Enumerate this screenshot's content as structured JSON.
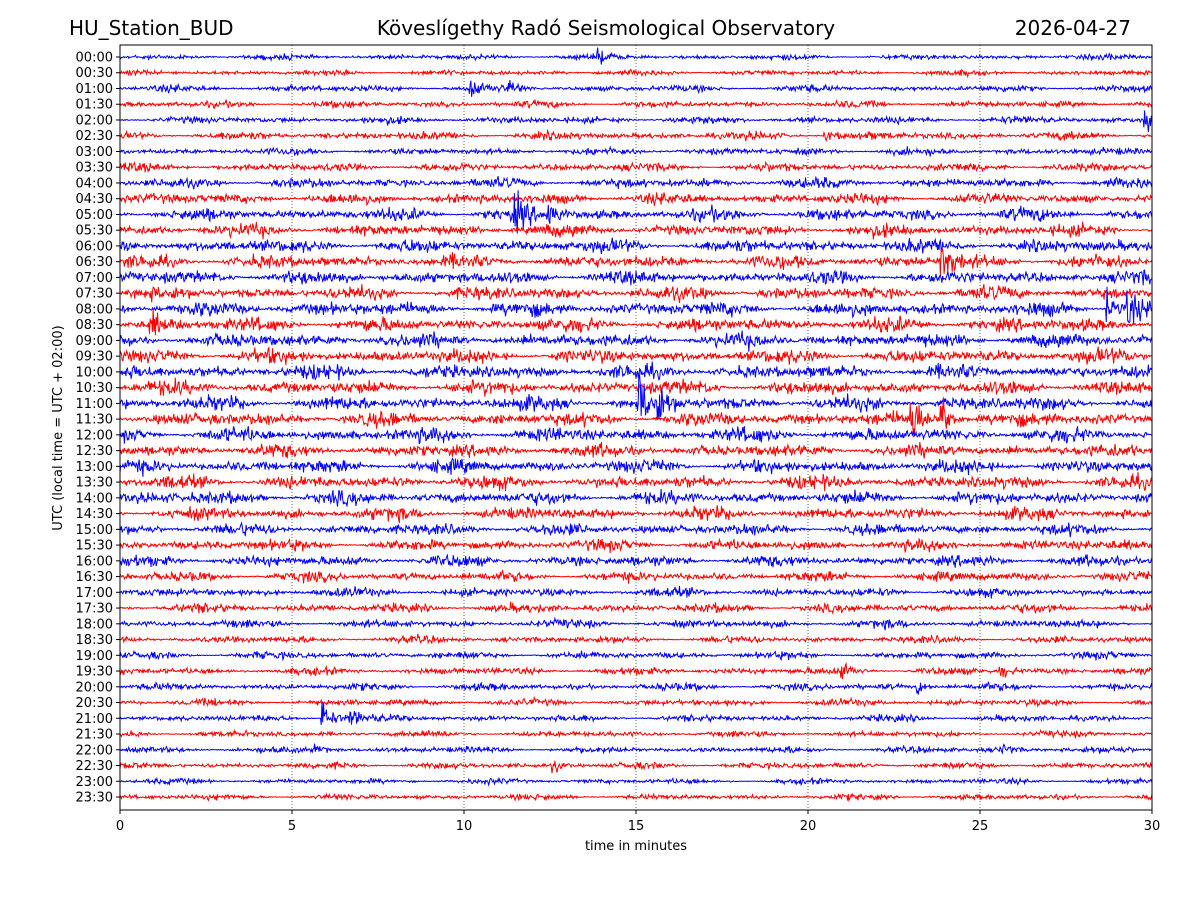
{
  "chart_data": {
    "type": "line",
    "title_left": "HU_Station_BUD",
    "title_center": "Köveslígethy Radó Seismological Observatory",
    "title_right": "2026-04-27",
    "xlabel": "time in minutes",
    "ylabel": "UTC (local time = UTC + 02:00)",
    "xlim": [
      0,
      30
    ],
    "xticks": [
      0,
      5,
      10,
      15,
      20,
      25,
      30
    ],
    "grid": "vertical dotted at x ticks",
    "colors": [
      "#0000ff",
      "#ff0000"
    ],
    "rows": [
      "00:00",
      "00:30",
      "01:00",
      "01:30",
      "02:00",
      "02:30",
      "03:00",
      "03:30",
      "04:00",
      "04:30",
      "05:00",
      "05:30",
      "06:00",
      "06:30",
      "07:00",
      "07:30",
      "08:00",
      "08:30",
      "09:00",
      "09:30",
      "10:00",
      "10:30",
      "11:00",
      "11:30",
      "12:00",
      "12:30",
      "13:00",
      "13:30",
      "14:00",
      "14:30",
      "15:00",
      "15:30",
      "16:00",
      "16:30",
      "17:00",
      "17:30",
      "18:00",
      "18:30",
      "19:00",
      "19:30",
      "20:00",
      "20:30",
      "21:00",
      "21:30",
      "22:00",
      "22:30",
      "23:00",
      "23:30"
    ],
    "noise_level": [
      1.2,
      1.2,
      1.5,
      1.5,
      1.6,
      1.8,
      1.6,
      1.9,
      2.2,
      2.5,
      2.8,
      2.8,
      3.0,
      3.0,
      3.0,
      3.0,
      3.2,
      3.2,
      3.2,
      3.2,
      3.2,
      3.2,
      3.2,
      3.2,
      3.2,
      3.0,
      3.0,
      3.0,
      3.0,
      2.8,
      2.6,
      2.5,
      2.5,
      2.2,
      2.0,
      2.0,
      1.8,
      1.6,
      1.6,
      1.6,
      1.6,
      1.5,
      1.5,
      1.4,
      1.4,
      1.4,
      1.2,
      1.3
    ],
    "events": [
      {
        "row": "00:00",
        "minute": 13.9,
        "amplitude": 3
      },
      {
        "row": "01:00",
        "minute": 10.2,
        "amplitude": 4
      },
      {
        "row": "01:00",
        "minute": 11.3,
        "amplitude": 3
      },
      {
        "row": "02:00",
        "minute": 29.8,
        "amplitude": 6
      },
      {
        "row": "02:30",
        "minute": 20.5,
        "amplitude": 3
      },
      {
        "row": "05:00",
        "minute": 11.5,
        "amplitude": 8
      },
      {
        "row": "05:00",
        "minute": 12.4,
        "amplitude": 6
      },
      {
        "row": "06:30",
        "minute": 23.9,
        "amplitude": 12
      },
      {
        "row": "08:00",
        "minute": 28.7,
        "amplitude": 10
      },
      {
        "row": "08:00",
        "minute": 29.3,
        "amplitude": 8
      },
      {
        "row": "08:30",
        "minute": 0.9,
        "amplitude": 7
      },
      {
        "row": "11:00",
        "minute": 15.1,
        "amplitude": 14
      },
      {
        "row": "11:00",
        "minute": 15.6,
        "amplitude": 9
      },
      {
        "row": "11:30",
        "minute": 23.0,
        "amplitude": 12
      },
      {
        "row": "11:30",
        "minute": 23.9,
        "amplitude": 12
      },
      {
        "row": "19:30",
        "minute": 21.0,
        "amplitude": 4
      },
      {
        "row": "19:30",
        "minute": 25.6,
        "amplitude": 4
      },
      {
        "row": "20:00",
        "minute": 23.2,
        "amplitude": 3
      },
      {
        "row": "21:00",
        "minute": 5.9,
        "amplitude": 9
      },
      {
        "row": "21:00",
        "minute": 6.7,
        "amplitude": 5
      },
      {
        "row": "22:00",
        "minute": 5.7,
        "amplitude": 3
      },
      {
        "row": "22:00",
        "minute": 25.6,
        "amplitude": 3
      },
      {
        "row": "22:30",
        "minute": 12.6,
        "amplitude": 3
      }
    ]
  }
}
